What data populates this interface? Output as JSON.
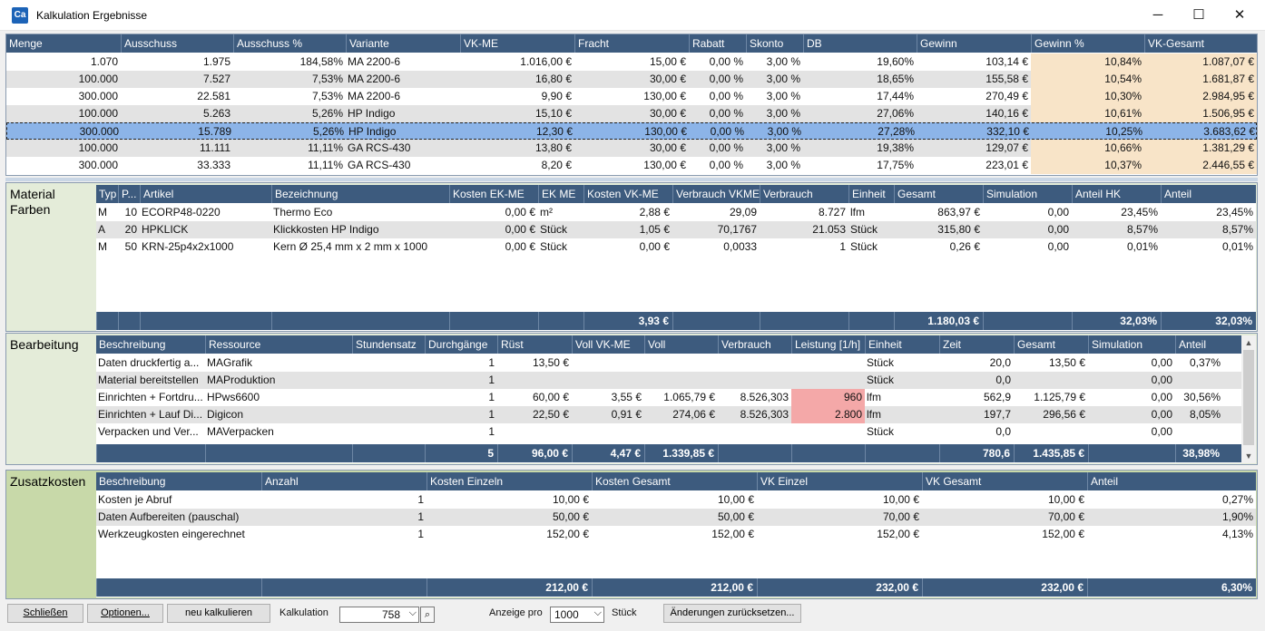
{
  "window": {
    "title": "Kalkulation Ergebnisse",
    "icon": "app-icon",
    "minimize": "─",
    "maximize": "☐",
    "close": "✕"
  },
  "top": {
    "headers": [
      "Menge",
      "Ausschuss",
      "Ausschuss %",
      "Variante",
      "VK-ME",
      "Fracht",
      "Rabatt",
      "Skonto",
      "DB",
      "Gewinn",
      "Gewinn %",
      "VK-Gesamt"
    ],
    "rows": [
      [
        "1.070",
        "1.975",
        "184,58%",
        "MA 2200-6",
        "1.016,00 €",
        "15,00 €",
        "0,00 %",
        "3,00 %",
        "19,60%",
        "103,14 €",
        "10,84%",
        "1.087,07 €"
      ],
      [
        "100.000",
        "7.527",
        "7,53%",
        "MA 2200-6",
        "16,80 €",
        "30,00 €",
        "0,00 %",
        "3,00 %",
        "18,65%",
        "155,58 €",
        "10,54%",
        "1.681,87 €"
      ],
      [
        "300.000",
        "22.581",
        "7,53%",
        "MA 2200-6",
        "9,90 €",
        "130,00 €",
        "0,00 %",
        "3,00 %",
        "17,44%",
        "270,49 €",
        "10,30%",
        "2.984,95 €"
      ],
      [
        "100.000",
        "5.263",
        "5,26%",
        "HP Indigo",
        "15,10 €",
        "30,00 €",
        "0,00 %",
        "3,00 %",
        "27,06%",
        "140,16 €",
        "10,61%",
        "1.506,95 €"
      ],
      [
        "300.000",
        "15.789",
        "5,26%",
        "HP Indigo",
        "12,30 €",
        "130,00 €",
        "0,00 %",
        "3,00 %",
        "27,28%",
        "332,10 €",
        "10,25%",
        "3.683,62 €"
      ],
      [
        "100.000",
        "11.111",
        "11,11%",
        "GA RCS-430",
        "13,80 €",
        "30,00 €",
        "0,00 %",
        "3,00 %",
        "19,38%",
        "129,07 €",
        "10,66%",
        "1.381,29 €"
      ],
      [
        "300.000",
        "33.333",
        "11,11%",
        "GA RCS-430",
        "8,20 €",
        "130,00 €",
        "0,00 %",
        "3,00 %",
        "17,75%",
        "223,01 €",
        "10,37%",
        "2.446,55 €"
      ]
    ]
  },
  "material": {
    "label": "Material\nFarben",
    "headers": [
      "Typ",
      "P...",
      "Artikel",
      "Bezeichnung",
      "Kosten EK-ME",
      "EK ME",
      "Kosten VK-ME",
      "Verbrauch VKME",
      "Verbrauch",
      "Einheit",
      "Gesamt",
      "Simulation",
      "Anteil HK",
      "Anteil"
    ],
    "rows": [
      [
        "M",
        "10",
        "ECORP48-0220",
        "Thermo Eco",
        "0,00 €",
        "m²",
        "2,88 €",
        "29,09",
        "8.727",
        "lfm",
        "863,97 €",
        "0,00",
        "23,45%",
        "23,45%"
      ],
      [
        "A",
        "20",
        "HPKLICK",
        "Klickkosten HP Indigo",
        "0,00 €",
        "Stück",
        "1,05 €",
        "70,1767",
        "21.053",
        "Stück",
        "315,80 €",
        "0,00",
        "8,57%",
        "8,57%"
      ],
      [
        "M",
        "50",
        "KRN-25p4x2x1000",
        "Kern Ø 25,4 mm x 2 mm x 1000",
        "0,00 €",
        "Stück",
        "0,00 €",
        "0,0033",
        "1",
        "Stück",
        "0,26 €",
        "0,00",
        "0,01%",
        "0,01%"
      ]
    ],
    "footer": [
      "",
      "",
      "",
      "",
      "",
      "",
      "3,93 €",
      "",
      "",
      "",
      "1.180,03 €",
      "",
      "32,03%",
      "32,03%"
    ]
  },
  "bearbeitung": {
    "label": "Bearbeitung",
    "headers": [
      "Beschreibung",
      "Ressource",
      "Stundensatz",
      "Durchgänge",
      "Rüst",
      "Voll VK-ME",
      "Voll",
      "Verbrauch",
      "Leistung [1/h]",
      "Einheit",
      "Zeit",
      "Gesamt",
      "Simulation",
      "Anteil"
    ],
    "rows": [
      [
        "Daten druckfertig a...",
        "MAGrafik",
        "",
        "1",
        "13,50 €",
        "",
        "",
        "",
        "",
        "Stück",
        "20,0",
        "13,50 €",
        "0,00",
        "0,37%"
      ],
      [
        "Material bereitstellen",
        "MAProduktion",
        "",
        "1",
        "",
        "",
        "",
        "",
        "",
        "Stück",
        "0,0",
        "",
        "0,00",
        ""
      ],
      [
        "Einrichten + Fortdru...",
        "HPws6600",
        "",
        "1",
        "60,00 €",
        "3,55 €",
        "1.065,79 €",
        "8.526,303",
        "960",
        "lfm",
        "562,9",
        "1.125,79 €",
        "0,00",
        "30,56%"
      ],
      [
        "Einrichten + Lauf Di...",
        "Digicon",
        "",
        "1",
        "22,50 €",
        "0,91 €",
        "274,06 €",
        "8.526,303",
        "2.800",
        "lfm",
        "197,7",
        "296,56 €",
        "0,00",
        "8,05%"
      ],
      [
        "Verpacken und Ver...",
        "MAVerpacken",
        "",
        "1",
        "",
        "",
        "",
        "",
        "",
        "Stück",
        "0,0",
        "",
        "0,00",
        ""
      ]
    ],
    "footer": [
      "",
      "",
      "",
      "5",
      "96,00 €",
      "4,47 €",
      "1.339,85 €",
      "",
      "",
      "",
      "780,6",
      "1.435,85 €",
      "",
      "38,98%"
    ]
  },
  "zusatz": {
    "label": "Zusatzkosten",
    "headers": [
      "Beschreibung",
      "Anzahl",
      "Kosten Einzeln",
      "Kosten Gesamt",
      "VK Einzel",
      "VK Gesamt",
      "Anteil"
    ],
    "rows": [
      [
        "Kosten je Abruf",
        "1",
        "10,00 €",
        "10,00 €",
        "10,00 €",
        "10,00 €",
        "0,27%"
      ],
      [
        "Daten Aufbereiten (pauschal)",
        "1",
        "50,00 €",
        "50,00 €",
        "70,00 €",
        "70,00 €",
        "1,90%"
      ],
      [
        "Werkzeugkosten eingerechnet",
        "1",
        "152,00 €",
        "152,00 €",
        "152,00 €",
        "152,00 €",
        "4,13%"
      ]
    ],
    "footer": [
      "",
      "",
      "212,00 €",
      "212,00 €",
      "232,00 €",
      "232,00 €",
      "6,30%"
    ]
  },
  "bottom": {
    "close": "Schließen",
    "options": "Optionen...",
    "recalc": "neu kalkulieren",
    "kalk_label": "Kalkulation",
    "kalk_value": "758",
    "anzeige_label": "Anzeige pro",
    "anzeige_value": "1000",
    "unit": "Stück",
    "reset": "Änderungen zurücksetzen..."
  },
  "colors": {
    "header": "#3d5b7e",
    "material_bg": "#e4ecd9",
    "zusatz_bg": "#c8d9a9",
    "selected": "#8cb4e8",
    "peach": "#f8e4c8",
    "pink": "#f4a8a8"
  }
}
